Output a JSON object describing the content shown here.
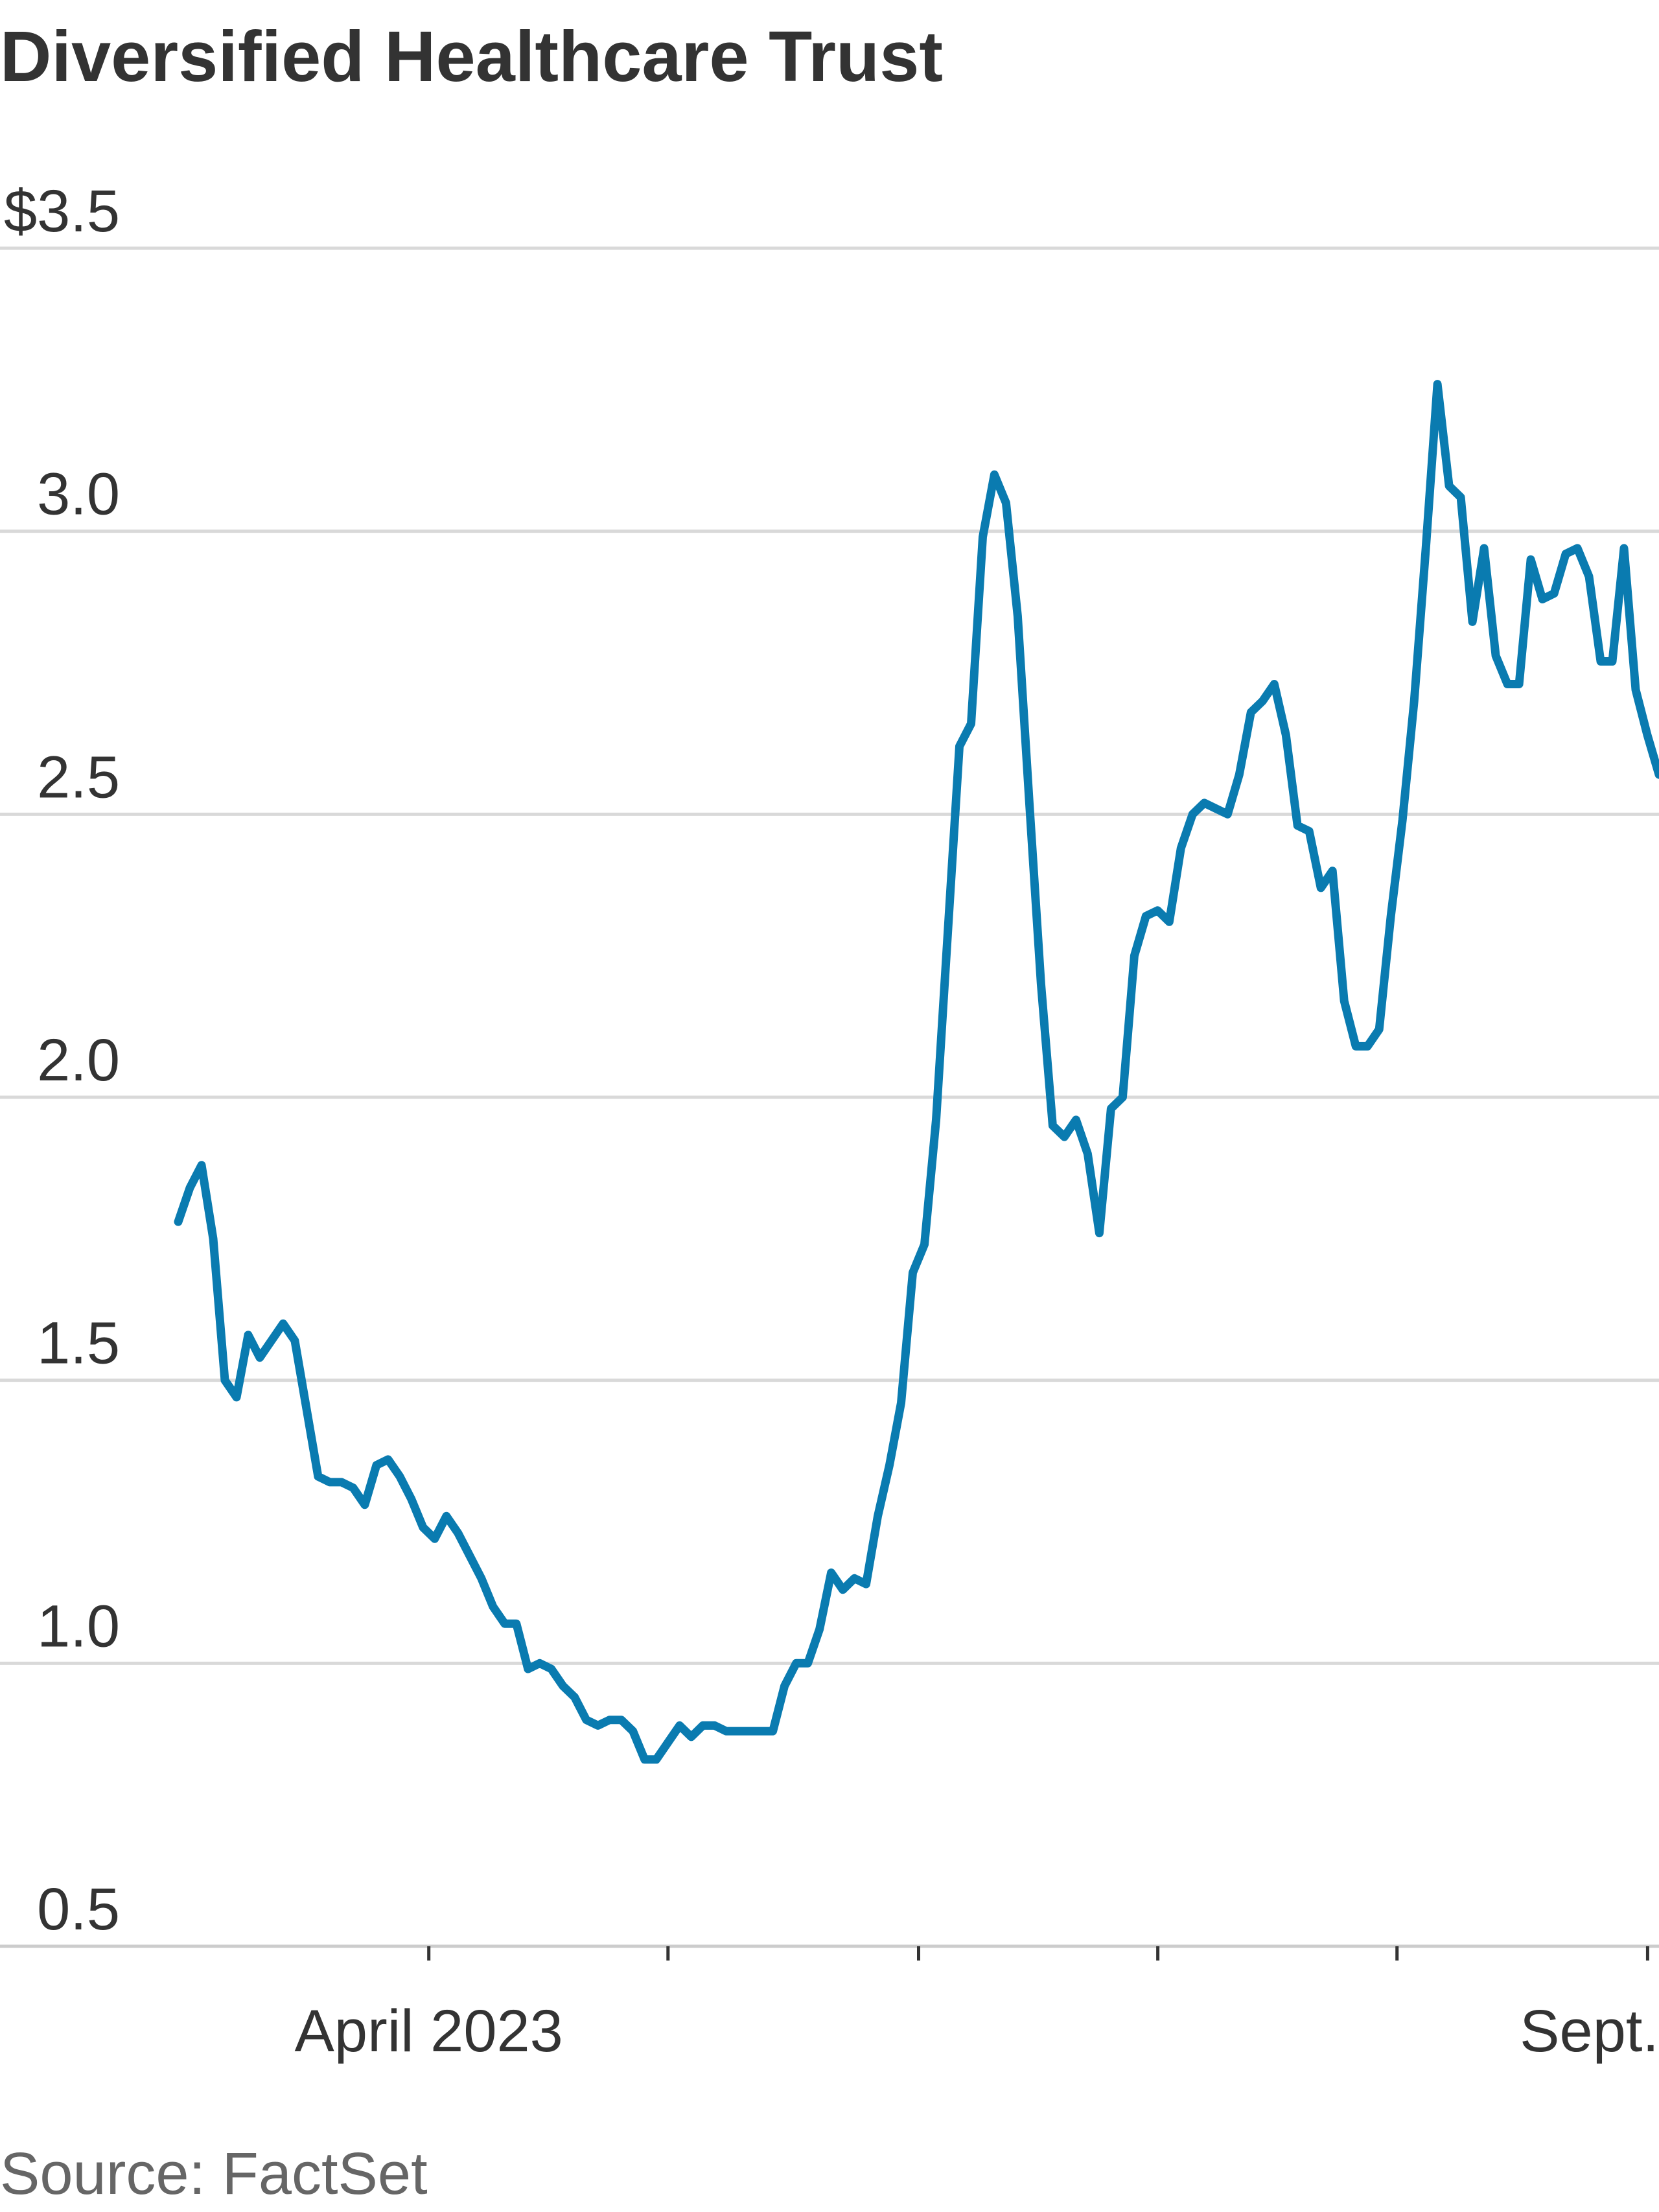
{
  "chart_data": {
    "type": "line",
    "title": "Diversified Healthcare Trust",
    "source": "Source: FactSet",
    "colors": {
      "line": "#0a7bb0",
      "grid": "#d9d9d9",
      "text": "#333333",
      "source_text": "#666666"
    },
    "ylim": [
      0.5,
      3.5
    ],
    "y_ticks": [
      {
        "value": 3.5,
        "label": "$3.5"
      },
      {
        "value": 3.0,
        "label": "3.0"
      },
      {
        "value": 2.5,
        "label": "2.5"
      },
      {
        "value": 2.0,
        "label": "2.0"
      },
      {
        "value": 1.5,
        "label": "1.5"
      },
      {
        "value": 1.0,
        "label": "1.0"
      },
      {
        "value": 0.5,
        "label": "0.5"
      }
    ],
    "x_ticks": [
      {
        "value": 22,
        "label": "April 2023"
      },
      {
        "value": 43,
        "label": ""
      },
      {
        "value": 65,
        "label": ""
      },
      {
        "value": 86,
        "label": ""
      },
      {
        "value": 107,
        "label": ""
      },
      {
        "value": 129,
        "label": "Sept."
      }
    ],
    "xlim": [
      0,
      130
    ],
    "grid": true,
    "series": [
      {
        "values": [
          1.78,
          1.84,
          1.88,
          1.75,
          1.5,
          1.47,
          1.58,
          1.54,
          1.57,
          1.6,
          1.57,
          1.45,
          1.33,
          1.32,
          1.32,
          1.31,
          1.28,
          1.35,
          1.36,
          1.33,
          1.29,
          1.24,
          1.22,
          1.26,
          1.23,
          1.19,
          1.15,
          1.1,
          1.07,
          1.07,
          0.99,
          1.0,
          0.99,
          0.96,
          0.94,
          0.9,
          0.89,
          0.9,
          0.9,
          0.88,
          0.83,
          0.83,
          0.86,
          0.89,
          0.87,
          0.89,
          0.89,
          0.88,
          0.88,
          0.88,
          0.88,
          0.88,
          0.96,
          1.0,
          1.0,
          1.06,
          1.16,
          1.13,
          1.15,
          1.14,
          1.26,
          1.35,
          1.46,
          1.69,
          1.74,
          1.96,
          2.29,
          2.62,
          2.66,
          2.99,
          3.1,
          3.05,
          2.85,
          2.52,
          2.2,
          1.95,
          1.93,
          1.96,
          1.9,
          1.76,
          1.98,
          2.0,
          2.25,
          2.32,
          2.33,
          2.31,
          2.44,
          2.5,
          2.52,
          2.51,
          2.5,
          2.57,
          2.68,
          2.7,
          2.73,
          2.64,
          2.48,
          2.47,
          2.37,
          2.4,
          2.17,
          2.09,
          2.09,
          2.12,
          2.32,
          2.49,
          2.7,
          2.97,
          3.26,
          3.08,
          3.06,
          2.84,
          2.97,
          2.78,
          2.73,
          2.73,
          2.95,
          2.88,
          2.89,
          2.96,
          2.97,
          2.92,
          2.77,
          2.77,
          2.97,
          2.72,
          2.64,
          2.57
        ]
      }
    ]
  }
}
